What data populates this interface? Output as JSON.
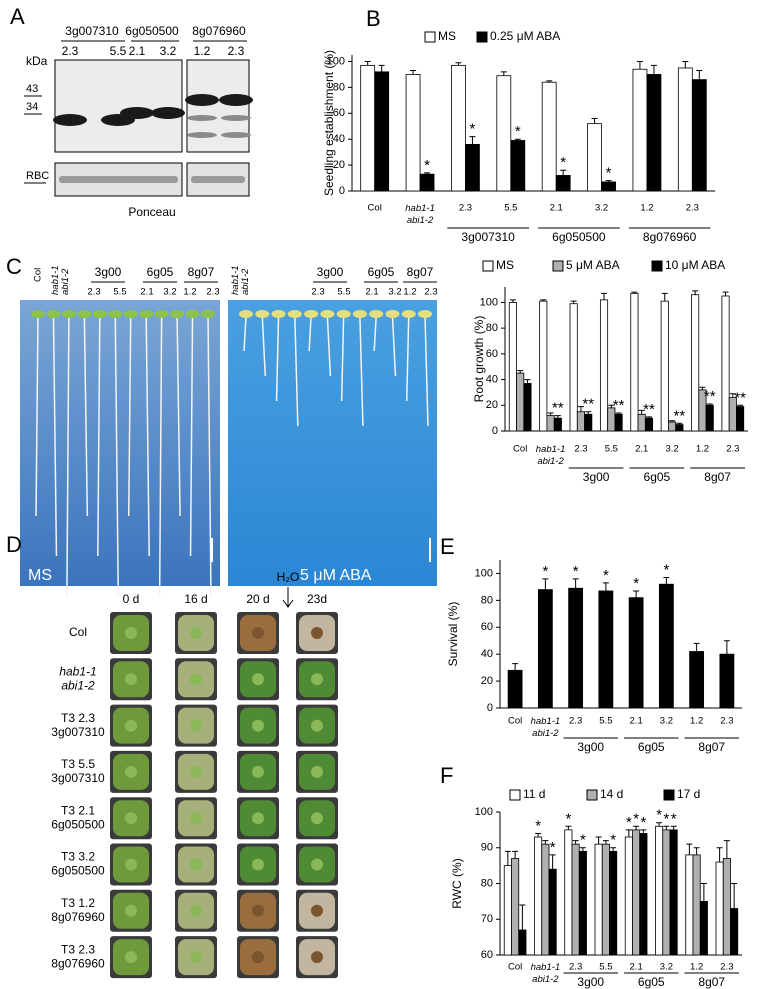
{
  "panel_a": {
    "label": "A",
    "groups": [
      {
        "name": "3g007310",
        "lines": [
          "2.3",
          "5.5"
        ]
      },
      {
        "name": "6g050500",
        "lines": [
          "2.1",
          "3.2"
        ]
      },
      {
        "name": "8g076960",
        "lines": [
          "1.2",
          "2.3"
        ]
      }
    ],
    "unit": "kDa",
    "markers": [
      "43",
      "34"
    ],
    "loading": "RBC",
    "stain": "Ponceau"
  },
  "panel_c": {
    "label": "C",
    "wild_type": "Col",
    "mutant": "hab1-1 abi1-2",
    "groups": [
      "3g00",
      "6g05",
      "8g07"
    ],
    "lines": [
      "2.3",
      "5.5",
      "2.1",
      "3.2",
      "1.2",
      "2.3"
    ],
    "plates": [
      "MS",
      "5 μM ABA"
    ]
  },
  "panel_d": {
    "label": "D",
    "days": [
      "0 d",
      "16 d",
      "20 d",
      "23d"
    ],
    "treatment": "H₂O",
    "rows": [
      [
        "Col"
      ],
      [
        "hab1-1",
        "abi1-2"
      ],
      [
        "T3 2.3",
        "3g007310"
      ],
      [
        "T3 5.5",
        "3g007310"
      ],
      [
        "T3 2.1",
        "6g050500"
      ],
      [
        "T3 3.2",
        "6g050500"
      ],
      [
        "T3 1.2",
        "8g076960"
      ],
      [
        "T3 2.3",
        "8g076960"
      ]
    ]
  },
  "chart_data": [
    {
      "type": "bar",
      "label": "B",
      "y_label": "Seedling establishment (%)",
      "categories": [
        "Col",
        "hab1-1 abi1-2",
        "2.3",
        "5.5",
        "2.1",
        "3.2",
        "1.2",
        "2.3"
      ],
      "groups": [
        "3g007310",
        "6g050500",
        "8g076960"
      ],
      "ylim": [
        0,
        105
      ],
      "yticks": [
        0,
        20,
        40,
        60,
        80,
        100
      ],
      "series": [
        {
          "name": "MS",
          "color": "#ffffff",
          "values": [
            97,
            90,
            97,
            89,
            84,
            52,
            94,
            95
          ],
          "errors": [
            3,
            3,
            2,
            3,
            1,
            4,
            6,
            5
          ]
        },
        {
          "name": "0.25 μM ABA",
          "color": "#000000",
          "values": [
            92,
            13,
            36,
            39,
            12,
            7,
            90,
            86
          ],
          "errors": [
            5,
            1,
            6,
            1,
            4,
            1,
            7,
            7
          ],
          "annotations": [
            null,
            "*",
            "*",
            "*",
            "*",
            "*",
            null,
            null
          ]
        }
      ]
    },
    {
      "type": "bar",
      "y_label": "Root growth (%)",
      "categories": [
        "Col",
        "hab1-1 abi1-2",
        "2.3",
        "5.5",
        "2.1",
        "3.2",
        "1.2",
        "2.3"
      ],
      "groups": [
        "3g00",
        "6g05",
        "8g07"
      ],
      "ylim": [
        0,
        112
      ],
      "yticks": [
        0,
        20,
        40,
        60,
        80,
        100
      ],
      "series": [
        {
          "name": "MS",
          "color": "#ffffff",
          "values": [
            100,
            101,
            99,
            102,
            107,
            101,
            106,
            105
          ],
          "errors": [
            2,
            1,
            2,
            5,
            1,
            6,
            3,
            3
          ]
        },
        {
          "name": "5 μM ABA",
          "color": "#b0b0b0",
          "values": [
            45,
            12,
            15,
            18,
            13,
            7,
            32,
            26
          ],
          "errors": [
            2,
            2,
            4,
            2,
            3,
            1,
            2,
            3
          ]
        },
        {
          "name": "10 μM ABA",
          "color": "#000000",
          "values": [
            37,
            10,
            13,
            13,
            10,
            5,
            20,
            19
          ],
          "errors": [
            3,
            2,
            2,
            1,
            1,
            1,
            1,
            1
          ],
          "annotations": [
            null,
            "**",
            "**",
            "**",
            "**",
            "**",
            "**",
            "**"
          ]
        }
      ]
    },
    {
      "type": "bar",
      "label": "E",
      "y_label": "Survival (%)",
      "categories": [
        "Col",
        "hab1-1 abi1-2",
        "2.3",
        "5.5",
        "2.1",
        "3.2",
        "1.2",
        "2.3"
      ],
      "groups": [
        "3g00",
        "6g05",
        "8g07"
      ],
      "ylim": [
        0,
        110
      ],
      "yticks": [
        0,
        20,
        40,
        60,
        80,
        100
      ],
      "series": [
        {
          "color": "#000000",
          "values": [
            28,
            88,
            89,
            87,
            82,
            92,
            42,
            40
          ],
          "errors": [
            5,
            8,
            7,
            6,
            5,
            5,
            6,
            10
          ],
          "annotations": [
            null,
            "*",
            "*",
            "*",
            "*",
            "*",
            null,
            null
          ]
        }
      ]
    },
    {
      "type": "bar",
      "label": "F",
      "y_label": "RWC (%)",
      "categories": [
        "Col",
        "hab1-1 abi1-2",
        "2.3",
        "5.5",
        "2.1",
        "3.2",
        "1.2",
        "2.3"
      ],
      "groups": [
        "3g00",
        "6g05",
        "8g07"
      ],
      "ylim": [
        60,
        100
      ],
      "yticks": [
        60,
        70,
        80,
        90,
        100
      ],
      "series": [
        {
          "name": "11 d",
          "color": "#ffffff",
          "values": [
            85,
            93,
            95,
            91,
            93,
            96,
            88,
            86
          ],
          "errors": [
            4,
            1,
            1,
            2,
            2,
            1,
            3,
            4
          ],
          "annotations": [
            null,
            "*",
            "*",
            null,
            "*",
            "*",
            null,
            null
          ]
        },
        {
          "name": "14 d",
          "color": "#b0b0b0",
          "values": [
            87,
            91,
            91,
            91,
            95,
            95,
            88,
            87
          ],
          "errors": [
            2,
            1,
            1,
            1,
            1,
            1,
            2,
            5
          ],
          "annotations": [
            null,
            null,
            null,
            null,
            "*",
            "*",
            null,
            null
          ]
        },
        {
          "name": "17 d",
          "color": "#000000",
          "values": [
            67,
            84,
            89,
            89,
            94,
            95,
            75,
            73
          ],
          "errors": [
            7,
            4,
            1,
            1,
            1,
            1,
            5,
            7
          ],
          "annotations": [
            null,
            "*",
            "*",
            "*",
            "*",
            "*",
            null,
            null
          ]
        }
      ]
    }
  ]
}
